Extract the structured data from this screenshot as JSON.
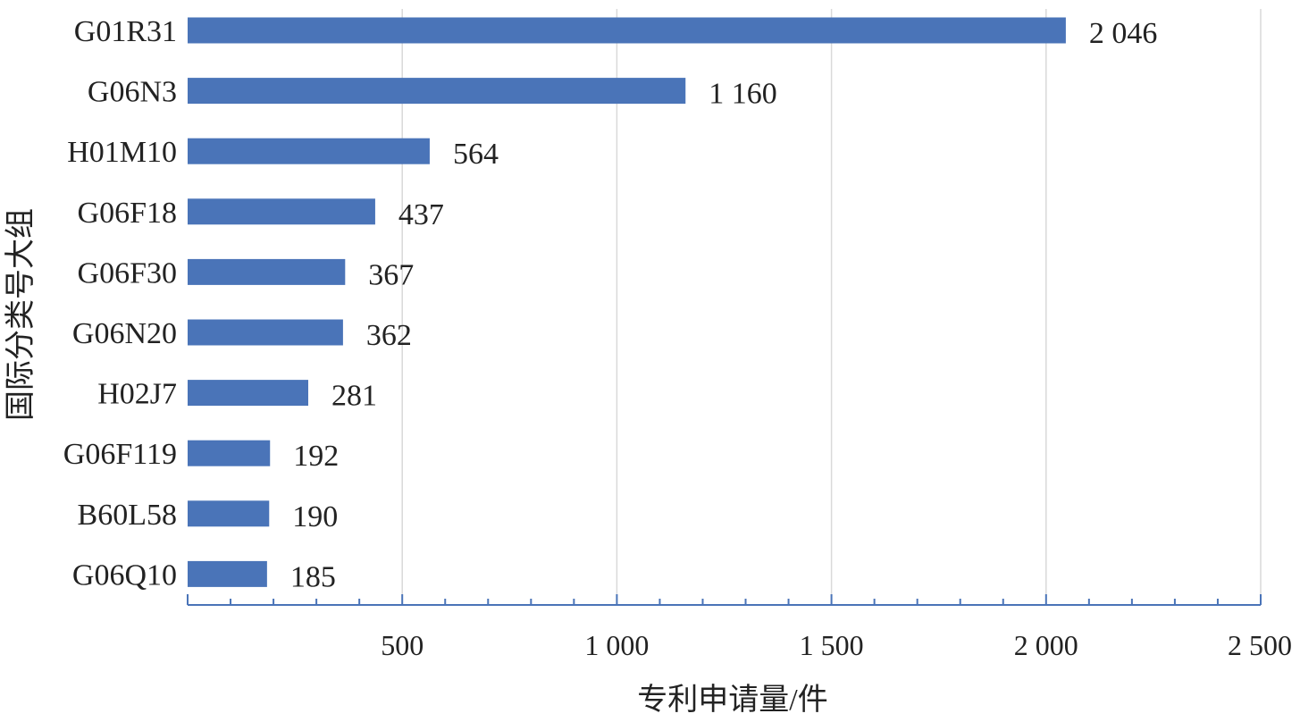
{
  "chart_data": {
    "type": "bar",
    "orientation": "horizontal",
    "categories": [
      "G01R31",
      "G06N3",
      "H01M10",
      "G06F18",
      "G06F30",
      "G06N20",
      "H02J7",
      "G06F119",
      "B60L58",
      "G06Q10"
    ],
    "values": [
      2046,
      1160,
      564,
      437,
      367,
      362,
      281,
      192,
      190,
      185
    ],
    "value_labels": [
      "2 046",
      "1 160",
      "564",
      "437",
      "367",
      "362",
      "281",
      "192",
      "190",
      "185"
    ],
    "xlabel": "专利申请量/件",
    "ylabel": "国际分类号大组",
    "xlim": [
      0,
      2500
    ],
    "x_ticks": [
      500,
      1000,
      1500,
      2000,
      2500
    ],
    "x_tick_labels": [
      "500",
      "1 000",
      "1 500",
      "2 000",
      "2 500"
    ],
    "x_minor_step": 100,
    "grid": "vertical",
    "legend": "none",
    "colors": {
      "bar": "#4a74b8",
      "axis": "#4a74b8",
      "grid": "#d9d9d9",
      "text": "#222222"
    }
  }
}
